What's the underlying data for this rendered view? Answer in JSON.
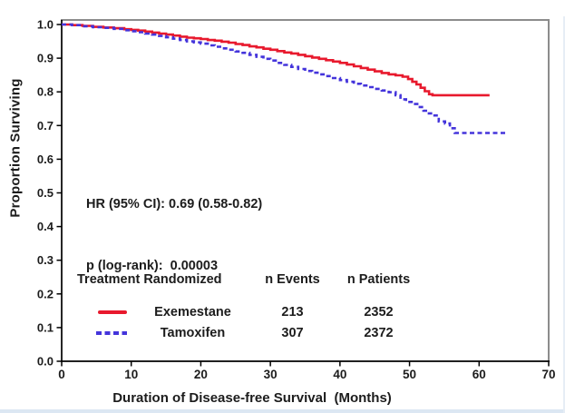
{
  "chart_data": {
    "type": "line",
    "subtype": "kaplan-meier-step",
    "title": "",
    "xlabel": "Duration of Disease-free Survival  (Months)",
    "ylabel": "Proportion Surviving",
    "xlim": [
      0,
      70
    ],
    "ylim": [
      0.0,
      1.0
    ],
    "x_ticks": [
      0,
      10,
      20,
      30,
      40,
      50,
      60,
      70
    ],
    "y_ticks": [
      "0.0",
      "0.1",
      "0.2",
      "0.3",
      "0.4",
      "0.5",
      "0.6",
      "0.7",
      "0.8",
      "0.9",
      "1.0"
    ],
    "grid": false,
    "legend_position": "inside-bottom-left",
    "annotations": [
      "HR (95% CI): 0.69 (0.58-0.82)",
      "p (log-rank):  0.00003"
    ],
    "series": [
      {
        "name": "Exemestane",
        "color": "#e8192d",
        "style": "solid",
        "n_events": 213,
        "n_patients": 2352,
        "points": [
          [
            0,
            1.0
          ],
          [
            1.5,
            0.998
          ],
          [
            3,
            0.996
          ],
          [
            4.5,
            0.993
          ],
          [
            6,
            0.991
          ],
          [
            7.5,
            0.989
          ],
          [
            9,
            0.986
          ],
          [
            10,
            0.984
          ],
          [
            11,
            0.982
          ],
          [
            12,
            0.979
          ],
          [
            13,
            0.976
          ],
          [
            14,
            0.973
          ],
          [
            15,
            0.97
          ],
          [
            16,
            0.967
          ],
          [
            17,
            0.964
          ],
          [
            18,
            0.961
          ],
          [
            19,
            0.959
          ],
          [
            20,
            0.957
          ],
          [
            21,
            0.954
          ],
          [
            22,
            0.952
          ],
          [
            23,
            0.949
          ],
          [
            24,
            0.946
          ],
          [
            25,
            0.942
          ],
          [
            26,
            0.939
          ],
          [
            27,
            0.935
          ],
          [
            28,
            0.932
          ],
          [
            29,
            0.928
          ],
          [
            30,
            0.925
          ],
          [
            31,
            0.921
          ],
          [
            32,
            0.917
          ],
          [
            33,
            0.914
          ],
          [
            34,
            0.91
          ],
          [
            35,
            0.906
          ],
          [
            36,
            0.902
          ],
          [
            37,
            0.898
          ],
          [
            38,
            0.894
          ],
          [
            39,
            0.89
          ],
          [
            40,
            0.886
          ],
          [
            41,
            0.881
          ],
          [
            42,
            0.876
          ],
          [
            43,
            0.871
          ],
          [
            44,
            0.866
          ],
          [
            45,
            0.861
          ],
          [
            46,
            0.856
          ],
          [
            47,
            0.852
          ],
          [
            48,
            0.849
          ],
          [
            49,
            0.845
          ],
          [
            49.8,
            0.838
          ],
          [
            50.4,
            0.83
          ],
          [
            51,
            0.822
          ],
          [
            51.6,
            0.812
          ],
          [
            52.2,
            0.802
          ],
          [
            52.8,
            0.793
          ],
          [
            53.3,
            0.79
          ],
          [
            61.5,
            0.79
          ]
        ]
      },
      {
        "name": "Tamoxifen",
        "color": "#4434db",
        "style": "dashed",
        "n_events": 307,
        "n_patients": 2372,
        "points": [
          [
            0,
            1.0
          ],
          [
            1.5,
            0.998
          ],
          [
            3,
            0.995
          ],
          [
            4.5,
            0.992
          ],
          [
            6,
            0.99
          ],
          [
            7.5,
            0.987
          ],
          [
            9,
            0.983
          ],
          [
            10,
            0.98
          ],
          [
            11,
            0.977
          ],
          [
            12,
            0.973
          ],
          [
            13,
            0.97
          ],
          [
            14,
            0.966
          ],
          [
            15,
            0.962
          ],
          [
            16,
            0.958
          ],
          [
            17,
            0.954
          ],
          [
            18,
            0.95
          ],
          [
            19,
            0.947
          ],
          [
            20,
            0.943
          ],
          [
            21,
            0.938
          ],
          [
            22,
            0.934
          ],
          [
            23,
            0.929
          ],
          [
            24,
            0.925
          ],
          [
            25,
            0.92
          ],
          [
            26,
            0.916
          ],
          [
            27,
            0.91
          ],
          [
            28,
            0.904
          ],
          [
            29,
            0.898
          ],
          [
            30,
            0.893
          ],
          [
            31,
            0.886
          ],
          [
            32,
            0.88
          ],
          [
            33,
            0.874
          ],
          [
            34,
            0.868
          ],
          [
            35,
            0.862
          ],
          [
            36,
            0.857
          ],
          [
            37,
            0.852
          ],
          [
            38,
            0.847
          ],
          [
            39,
            0.841
          ],
          [
            40,
            0.835
          ],
          [
            41,
            0.83
          ],
          [
            42,
            0.824
          ],
          [
            43,
            0.819
          ],
          [
            44,
            0.814
          ],
          [
            45,
            0.809
          ],
          [
            46,
            0.804
          ],
          [
            47,
            0.799
          ],
          [
            48,
            0.79
          ],
          [
            48.7,
            0.778
          ],
          [
            49.5,
            0.77
          ],
          [
            50.5,
            0.764
          ],
          [
            51.3,
            0.755
          ],
          [
            52,
            0.744
          ],
          [
            52.6,
            0.736
          ],
          [
            53.4,
            0.73
          ],
          [
            54.2,
            0.712
          ],
          [
            55.1,
            0.706
          ],
          [
            55.8,
            0.692
          ],
          [
            56.5,
            0.678
          ],
          [
            64,
            0.678
          ]
        ]
      }
    ]
  },
  "legend": {
    "header_treatment": "Treatment Randomized",
    "header_events": "n Events",
    "header_patients": "n Patients",
    "rows": [
      {
        "name": "Exemestane",
        "events": "213",
        "patients": "2352"
      },
      {
        "name": "Tamoxifen",
        "events": "307",
        "patients": "2372"
      }
    ]
  },
  "colors": {
    "exemestane": "#e8192d",
    "tamoxifen": "#4434db",
    "axis": "#000000",
    "frame": "#8c8c8c",
    "text": "#1c1c1c",
    "page_edge": "#dce7f3"
  }
}
